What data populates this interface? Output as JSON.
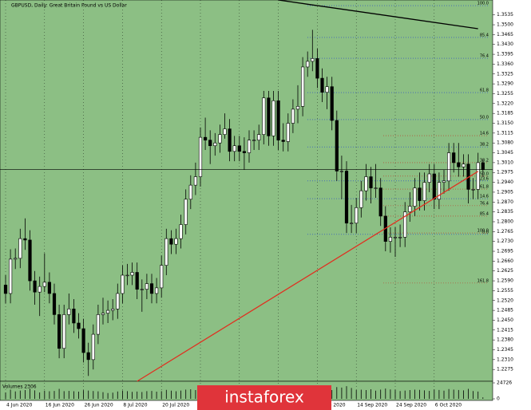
{
  "chart_data": {
    "type": "candlestick",
    "title": "GBPUSD, Daily: Great Britain Pound vs US Dollar",
    "watermark": "instaforex",
    "volume_title": "Volumes 2306",
    "background": "#8cbf84",
    "up_color": "#ffffff",
    "down_color": "#000000",
    "categories": [
      "4 Jun 2020",
      null,
      null,
      null,
      null,
      null,
      null,
      null,
      "16 Jun 2020",
      null,
      null,
      null,
      null,
      null,
      null,
      null,
      "26 Jun 2020",
      null,
      null,
      null,
      null,
      null,
      null,
      null,
      "8 Jul 2020",
      null,
      null,
      null,
      null,
      null,
      null,
      null,
      "20 Jul 2020",
      null,
      null,
      null,
      null,
      null,
      null,
      null,
      "30 Jul 2020",
      null,
      null,
      null,
      null,
      null,
      null,
      null,
      "11 Aug 2020",
      null,
      null,
      null,
      null,
      null,
      null,
      null,
      "21 Aug 2020",
      null,
      null,
      null,
      null,
      null,
      null,
      null,
      "2 Sep 2020",
      null,
      null,
      null,
      null,
      null,
      null,
      null,
      "14 Sep 2020",
      null,
      null,
      null,
      null,
      null,
      null,
      null,
      "24 Sep 2020",
      null,
      null,
      null,
      null,
      null,
      null,
      null,
      "6 Oct 2020",
      null,
      null,
      null,
      null,
      null,
      null,
      null,
      null,
      null,
      null
    ],
    "open": [
      1.2575,
      1.2545,
      1.2667,
      1.267,
      1.274,
      1.2735,
      1.259,
      1.255,
      1.257,
      1.2585,
      1.2545,
      1.247,
      1.235,
      1.247,
      1.249,
      1.244,
      1.242,
      1.2335,
      1.231,
      1.24,
      1.247,
      1.2475,
      1.2485,
      1.249,
      1.2545,
      1.261,
      1.261,
      1.262,
      1.256,
      1.256,
      1.258,
      1.2545,
      1.2565,
      1.2645,
      1.274,
      1.272,
      1.274,
      1.279,
      1.288,
      1.293,
      1.296,
      1.31,
      1.309,
      1.307,
      1.308,
      1.311,
      1.313,
      1.305,
      1.307,
      1.305,
      1.3045,
      1.309,
      1.309,
      1.311,
      1.324,
      1.3105,
      1.323,
      1.309,
      1.3085,
      1.315,
      1.32,
      1.321,
      1.335,
      1.337,
      1.338,
      1.331,
      1.326,
      1.328,
      1.316,
      1.298,
      1.298,
      1.2795,
      1.2795,
      1.285,
      1.291,
      1.296,
      1.292,
      1.292,
      1.282,
      1.273,
      1.2745,
      1.2745,
      1.2745,
      1.2835,
      1.2855,
      1.292,
      1.2875,
      1.294,
      1.297,
      1.288,
      1.294,
      1.2945,
      1.3045,
      1.301,
      1.2995,
      1.3005,
      1.2915,
      1.2915,
      1.301
    ],
    "high": [
      1.261,
      1.2702,
      1.2705,
      1.2775,
      1.2812,
      1.277,
      1.2625,
      1.2605,
      1.2688,
      1.262,
      1.258,
      1.2505,
      1.2505,
      1.2545,
      1.2525,
      1.2475,
      1.2455,
      1.237,
      1.2435,
      1.2505,
      1.253,
      1.252,
      1.2525,
      1.258,
      1.2645,
      1.265,
      1.2655,
      1.2655,
      1.2595,
      1.2615,
      1.2615,
      1.26,
      1.268,
      1.2775,
      1.277,
      1.2775,
      1.2825,
      1.2915,
      1.2965,
      1.301,
      1.3135,
      1.317,
      1.3125,
      1.3115,
      1.3145,
      1.3185,
      1.3165,
      1.3105,
      1.3105,
      1.31,
      1.3125,
      1.3125,
      1.3145,
      1.3265,
      1.3265,
      1.3265,
      1.3265,
      1.315,
      1.3185,
      1.3235,
      1.3285,
      1.3385,
      1.3405,
      1.3482,
      1.3415,
      1.3345,
      1.3315,
      1.3315,
      1.3195,
      1.3035,
      1.3015,
      1.286,
      1.2885,
      1.2945,
      1.3005,
      1.2995,
      1.3005,
      1.2955,
      1.2855,
      1.278,
      1.278,
      1.279,
      1.287,
      1.2905,
      1.2955,
      1.2975,
      1.2975,
      1.3005,
      1.3005,
      1.2975,
      1.2985,
      1.308,
      1.308,
      1.308,
      1.304,
      1.304,
      1.2955,
      1.3045,
      1.302
    ],
    "low": [
      1.251,
      1.251,
      1.2632,
      1.2635,
      1.27,
      1.2555,
      1.2505,
      1.2465,
      1.255,
      1.251,
      1.2435,
      1.2315,
      1.2315,
      1.2435,
      1.2405,
      1.2385,
      1.23,
      1.2252,
      1.2275,
      1.2365,
      1.2435,
      1.244,
      1.245,
      1.2455,
      1.251,
      1.2575,
      1.2575,
      1.2525,
      1.248,
      1.2525,
      1.251,
      1.251,
      1.253,
      1.261,
      1.2685,
      1.2685,
      1.2705,
      1.2755,
      1.2845,
      1.2895,
      1.2925,
      1.3055,
      1.3005,
      1.3035,
      1.3045,
      1.3095,
      1.3015,
      1.3015,
      1.3015,
      1.2985,
      1.301,
      1.3055,
      1.3055,
      1.3075,
      1.307,
      1.307,
      1.3055,
      1.305,
      1.305,
      1.3115,
      1.315,
      1.3175,
      1.3315,
      1.3335,
      1.3275,
      1.3225,
      1.32,
      1.3125,
      1.2945,
      1.288,
      1.276,
      1.276,
      1.276,
      1.2815,
      1.2875,
      1.2865,
      1.2885,
      1.2785,
      1.2695,
      1.269,
      1.2675,
      1.271,
      1.271,
      1.28,
      1.282,
      1.284,
      1.284,
      1.2905,
      1.2845,
      1.2845,
      1.29,
      1.291,
      1.2975,
      1.296,
      1.296,
      1.2865,
      1.288,
      1.288,
      1.296
    ],
    "close": [
      1.2545,
      1.2667,
      1.267,
      1.274,
      1.2735,
      1.259,
      1.255,
      1.257,
      1.2585,
      1.2545,
      1.247,
      1.235,
      1.247,
      1.249,
      1.244,
      1.242,
      1.2335,
      1.231,
      1.24,
      1.247,
      1.2475,
      1.2485,
      1.249,
      1.2545,
      1.261,
      1.261,
      1.262,
      1.256,
      1.256,
      1.258,
      1.2545,
      1.2565,
      1.2645,
      1.274,
      1.272,
      1.274,
      1.279,
      1.288,
      1.293,
      1.296,
      1.31,
      1.309,
      1.307,
      1.308,
      1.311,
      1.313,
      1.305,
      1.307,
      1.305,
      1.3045,
      1.309,
      1.309,
      1.311,
      1.324,
      1.3105,
      1.323,
      1.309,
      1.3085,
      1.315,
      1.32,
      1.321,
      1.335,
      1.337,
      1.338,
      1.331,
      1.326,
      1.328,
      1.316,
      1.298,
      1.298,
      1.2795,
      1.2795,
      1.285,
      1.291,
      1.296,
      1.292,
      1.292,
      1.282,
      1.273,
      1.2745,
      1.2745,
      1.2745,
      1.2835,
      1.2855,
      1.292,
      1.2875,
      1.294,
      1.297,
      1.288,
      1.294,
      1.2945,
      1.3045,
      1.301,
      1.2995,
      1.3005,
      1.2915,
      1.2915,
      1.301,
      1.2985
    ],
    "volumes": [
      9800,
      14200,
      11500,
      12800,
      13600,
      15900,
      13100,
      9900,
      12600,
      11800,
      12200,
      15400,
      11900,
      12300,
      11700,
      11200,
      13400,
      12800,
      12100,
      11600,
      10300,
      8900,
      9600,
      11400,
      12800,
      11900,
      10800,
      11300,
      10600,
      11900,
      12200,
      11100,
      11800,
      13900,
      12600,
      11700,
      12900,
      14300,
      14800,
      13600,
      16800,
      13900,
      13200,
      12500,
      13400,
      14100,
      13800,
      11900,
      13100,
      12800,
      12400,
      12000,
      11600,
      14900,
      15300,
      14200,
      15800,
      12700,
      13900,
      13500,
      14800,
      15700,
      14600,
      18900,
      16200,
      14700,
      13800,
      13600,
      18200,
      17400,
      19600,
      16900,
      13800,
      14200,
      13600,
      14800,
      12700,
      14300,
      15900,
      14600,
      14100,
      12100,
      12800,
      13600,
      14200,
      13900,
      13100,
      12300,
      14400,
      13800,
      12600,
      15100,
      14300,
      13700,
      13200,
      15400,
      12100,
      11300,
      2306
    ],
    "ylim": [
      1.2233,
      1.3588
    ],
    "yticks": [
      1.2275,
      {
        "value": 1.231,
        "label": "1.2310"
      },
      1.2345,
      {
        "value": 1.238,
        "label": "1.2380"
      },
      1.2415,
      {
        "value": 1.245,
        "label": "1.2450"
      },
      1.2485,
      {
        "value": 1.252,
        "label": "1.2520"
      },
      1.2555,
      {
        "value": 1.259,
        "label": "1.2590"
      },
      1.2625,
      {
        "value": 1.266,
        "label": "1.2660"
      },
      1.2695,
      {
        "value": 1.273,
        "label": "1.2730"
      },
      1.2765,
      {
        "value": 1.28,
        "label": "1.2800"
      },
      1.2835,
      {
        "value": 1.287,
        "label": "1.2870"
      },
      1.2905,
      {
        "value": 1.294,
        "label": "1.2940"
      },
      1.2975,
      {
        "value": 1.301,
        "label": "1.3010"
      },
      1.3045,
      {
        "value": 1.308,
        "label": "1.3080"
      },
      1.3115,
      {
        "value": 1.315,
        "label": "1.3150"
      },
      1.3185,
      {
        "value": 1.322,
        "label": "1.3220"
      },
      1.3255,
      {
        "value": 1.329,
        "label": "1.3290"
      },
      1.3325,
      {
        "value": 1.336,
        "label": "1.3360"
      },
      1.3395,
      {
        "value": 1.343,
        "label": "1.3430"
      },
      1.3465,
      {
        "value": 1.35,
        "label": "1.3500"
      },
      1.3535
    ],
    "volume_ylim": [
      0,
      24726
    ],
    "volume_yticks": [
      0,
      24726
    ],
    "fib_up": {
      "color": "#2040d0",
      "levels": [
        {
          "label": "100.0",
          "price": 1.3568
        },
        {
          "label": "85.4",
          "price": 1.3455
        },
        {
          "label": "76.4",
          "price": 1.3381
        },
        {
          "label": "61.8",
          "price": 1.3259
        },
        {
          "label": "50.0",
          "price": 1.3163
        },
        {
          "label": "38.2",
          "price": 1.3066
        },
        {
          "label": "23.6",
          "price": 1.2945
        },
        {
          "label": "14.6",
          "price": 1.2882
        },
        {
          "label": "0.0",
          "price": 1.2755
        }
      ]
    },
    "fib_down": {
      "color": "#c03020",
      "levels": [
        {
          "label": "14.6",
          "price": 1.3106
        },
        {
          "label": "38.2",
          "price": 1.301
        },
        {
          "label": "50.0",
          "price": 1.2962
        },
        {
          "label": "61.8",
          "price": 1.2916
        },
        {
          "label": "76.4",
          "price": 1.2857
        },
        {
          "label": "85.4",
          "price": 1.282
        },
        {
          "label": "100.0",
          "price": 1.276
        },
        {
          "label": "161.8",
          "price": 1.2582
        }
      ]
    },
    "trendlines": [
      {
        "color": "#e03020",
        "x": [
          27,
          97
        ],
        "y": [
          1.2233,
          1.2979
        ]
      },
      {
        "color": "#000000",
        "x": [
          56,
          97
        ],
        "y": [
          1.3588,
          1.3486
        ]
      }
    ]
  }
}
